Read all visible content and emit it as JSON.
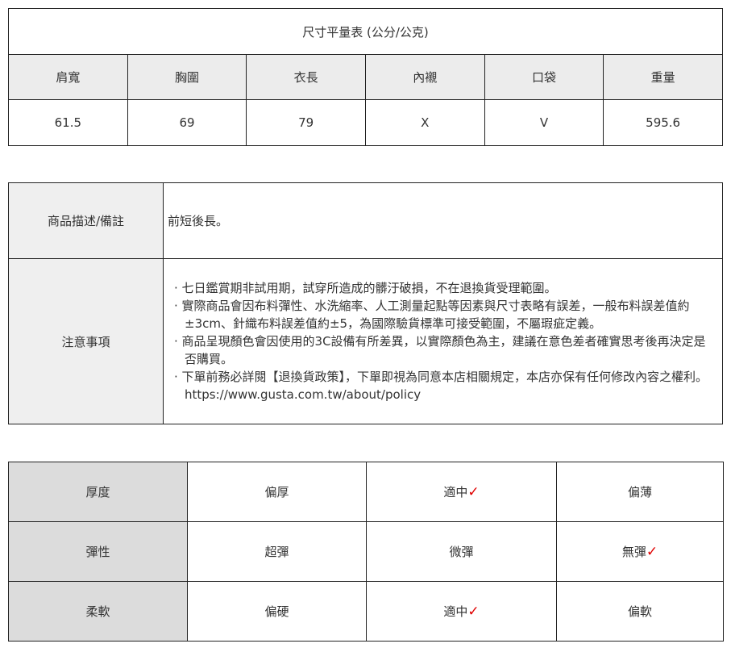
{
  "size_table": {
    "title": "尺寸平量表 (公分/公克)",
    "headers": [
      "肩寬",
      "胸圍",
      "衣長",
      "內襯",
      "口袋",
      "重量"
    ],
    "values": [
      "61.5",
      "69",
      "79",
      "X",
      "V",
      "595.6"
    ]
  },
  "info_table": {
    "description_label": "商品描述/備註",
    "description": "前短後長。",
    "notes_label": "注意事項",
    "notes": [
      "· 七日鑑賞期非試用期，試穿所造成的髒汙破損，不在退換貨受理範圍。",
      "· 實際商品會因布料彈性、水洗縮率、人工測量起點等因素與尺寸表略有誤差，一般布料誤差值約±3cm、針織布料誤差值約±5，為國際驗貨標準可接受範圍，不屬瑕疵定義。",
      "· 商品呈現顏色會因使用的3C設備有所差異，以實際顏色為主，建議在意色差者確實思考後再決定是否購買。",
      "· 下單前務必詳閱【退換貨政策】，下單即視為同意本店相關規定，本店亦保有任何修改內容之權利。https://www.gusta.com.tw/about/policy"
    ]
  },
  "feel_table": {
    "check_mark": "✓",
    "check_color": "#e00000",
    "rows": [
      {
        "label": "厚度",
        "options": [
          "偏厚",
          "適中",
          "偏薄"
        ],
        "selected": 1
      },
      {
        "label": "彈性",
        "options": [
          "超彈",
          "微彈",
          "無彈"
        ],
        "selected": 2
      },
      {
        "label": "柔軟",
        "options": [
          "偏硬",
          "適中",
          "偏軟"
        ],
        "selected": 1
      }
    ]
  }
}
